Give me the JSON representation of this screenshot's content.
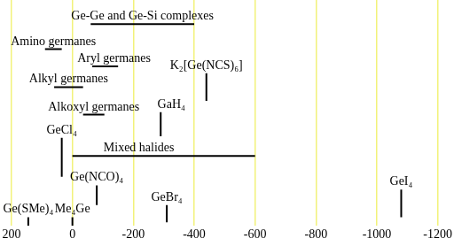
{
  "chart_data": {
    "type": "range",
    "xlim": [
      200,
      -1200
    ],
    "xticks": [
      200,
      0,
      -200,
      -400,
      -600,
      -800,
      -1000,
      -1200
    ],
    "grid": true,
    "color": "#000000",
    "ranges": [
      {
        "label": "Ge-Ge and Ge-Si complexes",
        "from": -60,
        "to": -400
      },
      {
        "label": "Amino germanes",
        "from": 90,
        "to": 35
      },
      {
        "label": "Aryl germanes",
        "from": -65,
        "to": -150
      },
      {
        "label": "Alkyl germanes",
        "from": 60,
        "to": -35
      },
      {
        "label": "Alkoxyl germanes",
        "from": -35,
        "to": -105
      },
      {
        "label": "Mixed halides",
        "from": 0,
        "to": -600
      }
    ],
    "lines": [
      {
        "label": "K₂[Ge(NCS)₆]",
        "value": -440
      },
      {
        "label": "GaH₄",
        "value": -290
      },
      {
        "label": "GeCl₄",
        "value": 35
      },
      {
        "label": "Ge(NCO)₄",
        "value": -80
      },
      {
        "label": "Ge(SMe)₄",
        "value": 145
      },
      {
        "label": "Me₄Ge",
        "value": 0
      },
      {
        "label": "GeBr₄",
        "value": -310
      },
      {
        "label": "GeI₄",
        "value": -1080
      }
    ]
  }
}
